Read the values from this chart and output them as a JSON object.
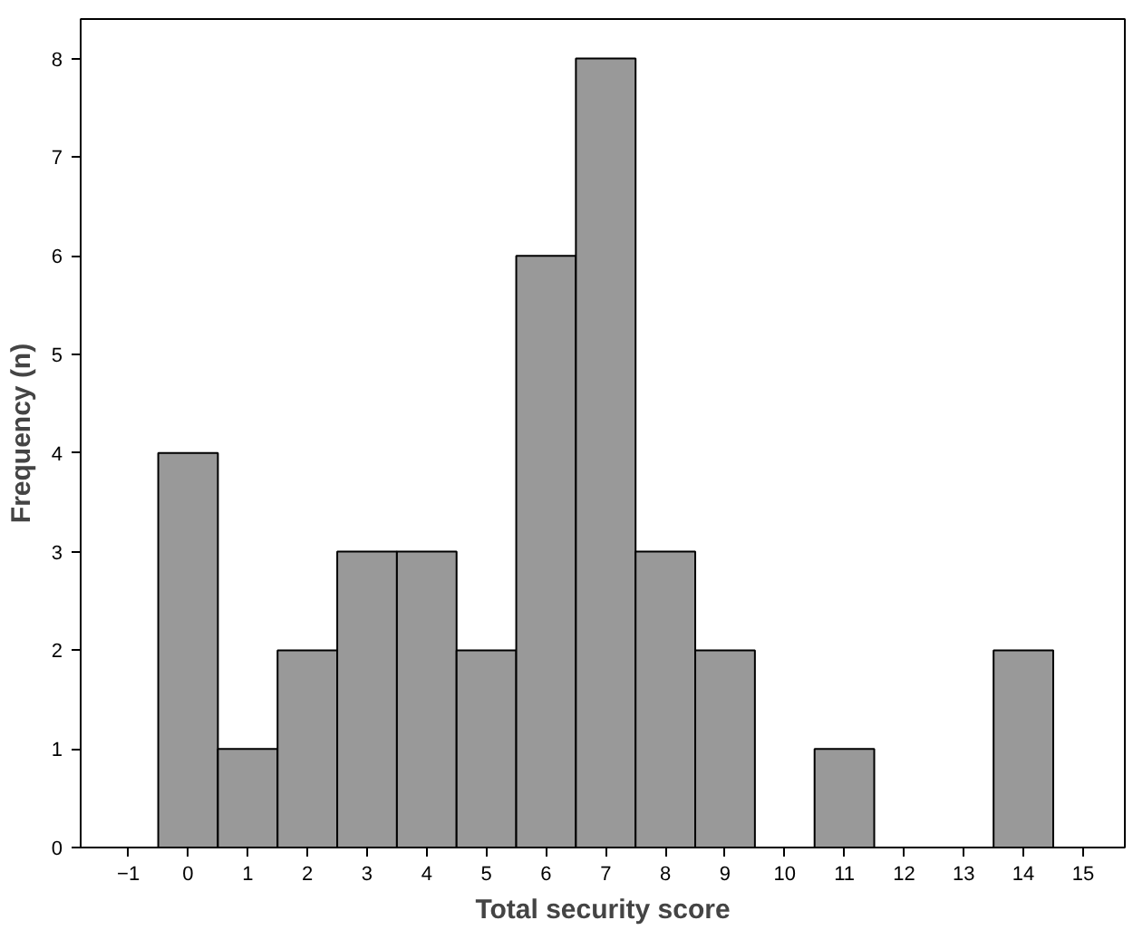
{
  "chart_data": {
    "type": "histogram",
    "xlabel": "Total security score",
    "ylabel": "Frequency (n)",
    "bins": [
      -0.5,
      0.5,
      1.5,
      2.5,
      3.5,
      4.5,
      5.5,
      6.5,
      7.5,
      8.5,
      9.5,
      10.5,
      11.5,
      12.5,
      13.5,
      14.5
    ],
    "values": [
      4,
      1,
      2,
      3,
      3,
      2,
      6,
      8,
      3,
      2,
      0,
      1,
      0,
      0,
      2
    ],
    "color": "#999999",
    "xlim": [
      -1.8,
      15.7
    ],
    "xticks": [
      -1,
      0,
      1,
      2,
      3,
      4,
      5,
      6,
      7,
      8,
      9,
      10,
      11,
      12,
      13,
      14,
      15
    ],
    "ylim": [
      0,
      8.4
    ],
    "yticks": [
      0,
      1,
      2,
      3,
      4,
      5,
      6,
      7,
      8
    ],
    "grid": false
  }
}
